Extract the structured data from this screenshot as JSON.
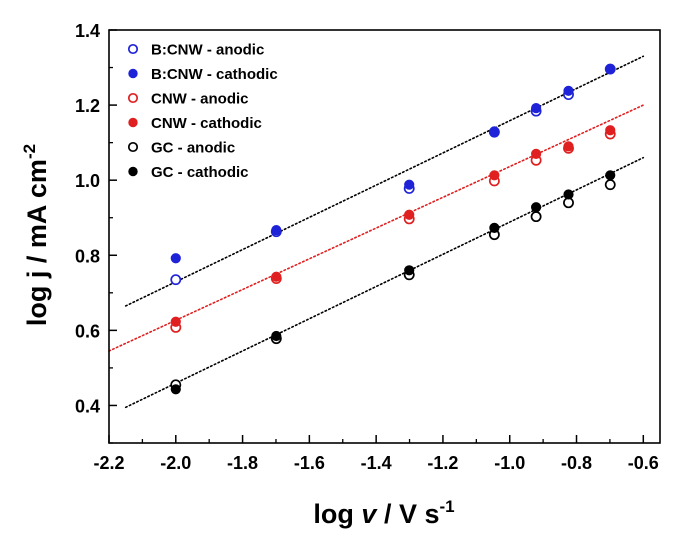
{
  "chart_data": {
    "type": "scatter",
    "xlabel": "log v / V s-1",
    "xlabel_parts": {
      "prefix": "log ",
      "var": "v",
      "middle": " / V s",
      "sup": "-1"
    },
    "ylabel": "log j / mA cm-2",
    "ylabel_parts": {
      "main": "log j / mA cm",
      "sup": "-2"
    },
    "xlim": [
      -2.2,
      -0.55
    ],
    "ylim": [
      0.3,
      1.4
    ],
    "x_ticks": [
      -2.2,
      -2.0,
      -1.8,
      -1.6,
      -1.4,
      -1.2,
      -1.0,
      -0.8,
      -0.6
    ],
    "y_ticks": [
      0.4,
      0.6,
      0.8,
      1.0,
      1.2,
      1.4
    ],
    "x_tick_labels": [
      "-2.2",
      "-2.0",
      "-1.8",
      "-1.6",
      "-1.4",
      "-1.2",
      "-1.0",
      "-0.8",
      "-0.6"
    ],
    "y_tick_labels": [
      "0.4",
      "0.6",
      "0.8",
      "1.0",
      "1.2",
      "1.4"
    ],
    "grid": false,
    "legend_position": "top-left",
    "x": [
      -2.0,
      -1.699,
      -1.301,
      -1.046,
      -0.921,
      -0.824,
      -0.699
    ],
    "series": [
      {
        "name": "B:CNW - anodic",
        "marker": "open",
        "color": "#1f23d8",
        "values": [
          0.735,
          0.863,
          0.978,
          1.128,
          1.184,
          1.228,
          1.296
        ]
      },
      {
        "name": "B:CNW - cathodic",
        "marker": "filled",
        "color": "#1f23d8",
        "values": [
          0.792,
          0.867,
          0.988,
          1.13,
          1.192,
          1.238,
          1.296
        ]
      },
      {
        "name": "CNW - anodic",
        "marker": "open",
        "color": "#e02020",
        "values": [
          0.608,
          0.738,
          0.897,
          0.998,
          1.053,
          1.085,
          1.123
        ]
      },
      {
        "name": "CNW - cathodic",
        "marker": "filled",
        "color": "#e02020",
        "values": [
          0.623,
          0.743,
          0.908,
          1.013,
          1.07,
          1.09,
          1.133
        ]
      },
      {
        "name": "GC - anodic",
        "marker": "open",
        "color": "#000000",
        "values": [
          0.455,
          0.578,
          0.748,
          0.855,
          0.903,
          0.94,
          0.988
        ]
      },
      {
        "name": "GC - cathodic",
        "marker": "filled",
        "color": "#000000",
        "values": [
          0.443,
          0.585,
          0.76,
          0.873,
          0.928,
          0.962,
          1.013
        ]
      }
    ],
    "fit_lines": [
      {
        "color": "#000000",
        "x": [
          -2.15,
          -0.6
        ],
        "y": [
          0.665,
          1.33
        ]
      },
      {
        "color": "#e02020",
        "x": [
          -2.2,
          -0.6
        ],
        "y": [
          0.545,
          1.2
        ]
      },
      {
        "color": "#000000",
        "x": [
          -2.15,
          -0.6
        ],
        "y": [
          0.395,
          1.06
        ]
      }
    ]
  }
}
